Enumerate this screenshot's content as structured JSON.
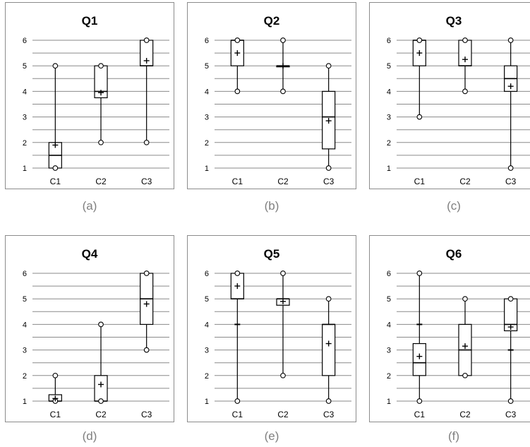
{
  "chart_data": [
    {
      "type": "box",
      "title": "Q1",
      "caption": "(a)",
      "categories": [
        "C1",
        "C2",
        "C3"
      ],
      "y_ticks": [
        "1",
        "2",
        "3",
        "4",
        "5",
        "6"
      ],
      "ylim": [
        1,
        6
      ],
      "grid": true,
      "boxes": [
        {
          "min": 1,
          "q1": 1,
          "median": 1.5,
          "q3": 2,
          "max": 5,
          "mean": 1.9,
          "whisker_low": 1,
          "whisker_high": 5
        },
        {
          "min": 2,
          "q1": 3.75,
          "median": 4,
          "q3": 5,
          "max": 5,
          "mean": 3.95,
          "whisker_low": 2,
          "whisker_high": 5
        },
        {
          "min": 2,
          "q1": 5,
          "median": 5,
          "q3": 6,
          "max": 6,
          "mean": 5.2,
          "whisker_low": 2,
          "whisker_high": 6
        }
      ]
    },
    {
      "type": "box",
      "title": "Q2",
      "caption": "(b)",
      "categories": [
        "C1",
        "C2",
        "C3"
      ],
      "y_ticks": [
        "1",
        "2",
        "3",
        "4",
        "5",
        "6"
      ],
      "ylim": [
        1,
        6
      ],
      "grid": true,
      "boxes": [
        {
          "min": 4,
          "q1": 5,
          "median": 6,
          "q3": 6,
          "max": 6,
          "mean": 5.5,
          "whisker_low": 4,
          "whisker_high": 6
        },
        {
          "min": 4,
          "q1": 5,
          "median": 5,
          "q3": 5,
          "max": 6,
          "mean": 5,
          "whisker_low": 4,
          "whisker_high": 6
        },
        {
          "min": 1,
          "q1": 1.75,
          "median": 3,
          "q3": 4,
          "max": 5,
          "mean": 2.85,
          "whisker_low": 1,
          "whisker_high": 5
        }
      ]
    },
    {
      "type": "box",
      "title": "Q3",
      "caption": "(c)",
      "categories": [
        "C1",
        "C2",
        "C3"
      ],
      "y_ticks": [
        "1",
        "2",
        "3",
        "4",
        "5",
        "6"
      ],
      "ylim": [
        1,
        6
      ],
      "grid": true,
      "boxes": [
        {
          "min": 3,
          "q1": 5,
          "median": 6,
          "q3": 6,
          "max": 6,
          "mean": 5.5,
          "whisker_low": 3,
          "whisker_high": 6
        },
        {
          "min": 4,
          "q1": 5,
          "median": 5,
          "q3": 6,
          "max": 6,
          "mean": 5.25,
          "whisker_low": 4,
          "whisker_high": 6
        },
        {
          "min": 1,
          "q1": 4,
          "median": 4.5,
          "q3": 5,
          "max": 6,
          "mean": 4.2,
          "whisker_low": 1,
          "whisker_high": 6
        }
      ]
    },
    {
      "type": "box",
      "title": "Q4",
      "caption": "(d)",
      "categories": [
        "C1",
        "C2",
        "C3"
      ],
      "y_ticks": [
        "1",
        "2",
        "3",
        "4",
        "5",
        "6"
      ],
      "ylim": [
        1,
        6
      ],
      "grid": true,
      "boxes": [
        {
          "min": 1,
          "q1": 1,
          "median": 1,
          "q3": 1.25,
          "max": 2,
          "mean": 1.1,
          "whisker_low": 1,
          "whisker_high": 2
        },
        {
          "min": 1,
          "q1": 1,
          "median": 1,
          "q3": 2,
          "max": 4,
          "mean": 1.65,
          "whisker_low": 1,
          "whisker_high": 4
        },
        {
          "min": 3,
          "q1": 4,
          "median": 5,
          "q3": 6,
          "max": 6,
          "mean": 4.8,
          "whisker_low": 3,
          "whisker_high": 6
        }
      ]
    },
    {
      "type": "box",
      "title": "Q5",
      "caption": "(e)",
      "categories": [
        "C1",
        "C2",
        "C3"
      ],
      "y_ticks": [
        "1",
        "2",
        "3",
        "4",
        "5",
        "6"
      ],
      "ylim": [
        1,
        6
      ],
      "grid": true,
      "boxes": [
        {
          "min": 1,
          "q1": 5,
          "median": 5,
          "q3": 6,
          "max": 6,
          "mean": 5.5,
          "whisker_low": 1,
          "whisker_high": 6,
          "inner_tick": 4
        },
        {
          "min": 2,
          "q1": 4.75,
          "median": 5,
          "q3": 5,
          "max": 6,
          "mean": 4.9,
          "whisker_low": 2,
          "whisker_high": 6
        },
        {
          "min": 1,
          "q1": 2,
          "median": 4,
          "q3": 4,
          "max": 5,
          "mean": 3.25,
          "whisker_low": 1,
          "whisker_high": 5
        }
      ]
    },
    {
      "type": "box",
      "title": "Q6",
      "caption": "(f)",
      "categories": [
        "C1",
        "C2",
        "C3"
      ],
      "y_ticks": [
        "1",
        "2",
        "3",
        "4",
        "5",
        "6"
      ],
      "ylim": [
        1,
        6
      ],
      "grid": true,
      "boxes": [
        {
          "min": 1,
          "q1": 2,
          "median": 2.5,
          "q3": 3.25,
          "max": 6,
          "mean": 2.75,
          "whisker_low": 1,
          "whisker_high": 6,
          "inner_tick": 4
        },
        {
          "min": 2,
          "q1": 2,
          "median": 3,
          "q3": 4,
          "max": 5,
          "mean": 3.15,
          "whisker_low": 2,
          "whisker_high": 5
        },
        {
          "min": 1,
          "q1": 3.75,
          "median": 4,
          "q3": 5,
          "max": 5,
          "mean": 3.9,
          "whisker_low": 1,
          "whisker_high": 5,
          "inner_tick": 3
        }
      ]
    }
  ]
}
